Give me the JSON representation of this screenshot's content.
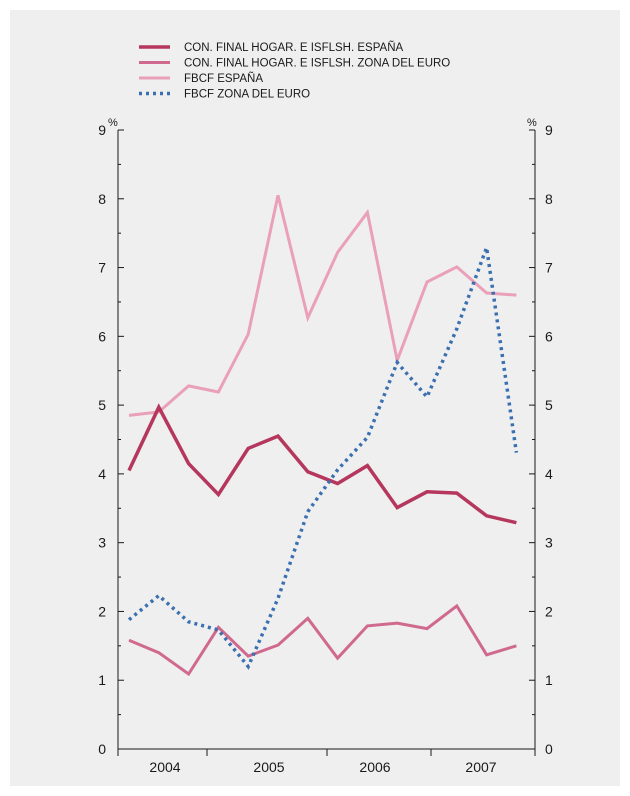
{
  "chart_data": {
    "type": "line",
    "title": "",
    "xlabel": "",
    "ylabel": "",
    "unit_left": "%",
    "unit_right": "%",
    "ylim": [
      0,
      9
    ],
    "yticks": [
      "0",
      "1",
      "2",
      "3",
      "4",
      "5",
      "6",
      "7",
      "8",
      "9"
    ],
    "x_tick_labels": [
      "2004",
      "2005",
      "2006",
      "2007"
    ],
    "grid": false,
    "legend_position": "top-left",
    "x": [
      "2004-Q1",
      "2004-Q2",
      "2004-Q3",
      "2004-Q4",
      "2005-Q1",
      "2005-Q2",
      "2005-Q3",
      "2005-Q4",
      "2006-Q1",
      "2006-Q2",
      "2006-Q3",
      "2006-Q4",
      "2007-Q1",
      "2007-Q2"
    ],
    "series": [
      {
        "name": "CON. FINAL HOGAR. E ISFLSH. ESPAÑA",
        "color": "#b5375e",
        "style": "solid-thick",
        "values": [
          4.05,
          4.97,
          4.15,
          3.7,
          4.37,
          4.55,
          4.03,
          3.86,
          4.12,
          3.51,
          3.74,
          3.72,
          3.39,
          3.29
        ]
      },
      {
        "name": "CON. FINAL HOGAR. E ISFLSH. ZONA DEL EURO",
        "color": "#d0698e",
        "style": "solid",
        "values": [
          1.58,
          1.4,
          1.09,
          1.77,
          1.35,
          1.51,
          1.9,
          1.32,
          1.79,
          1.83,
          1.75,
          2.08,
          1.37,
          1.5
        ]
      },
      {
        "name": "FBCF ESPAÑA",
        "color": "#eaa0b8",
        "style": "solid",
        "values": [
          4.85,
          4.9,
          5.28,
          5.19,
          6.03,
          8.05,
          6.27,
          7.22,
          7.8,
          5.65,
          6.79,
          7.01,
          6.63,
          6.6
        ]
      },
      {
        "name": "FBCF ZONA DEL EURO",
        "color": "#3a6fb0",
        "style": "dotted",
        "values": [
          1.88,
          2.23,
          1.85,
          1.73,
          1.2,
          2.19,
          3.45,
          4.06,
          4.53,
          5.62,
          5.12,
          6.11,
          7.29,
          4.31
        ]
      }
    ]
  }
}
